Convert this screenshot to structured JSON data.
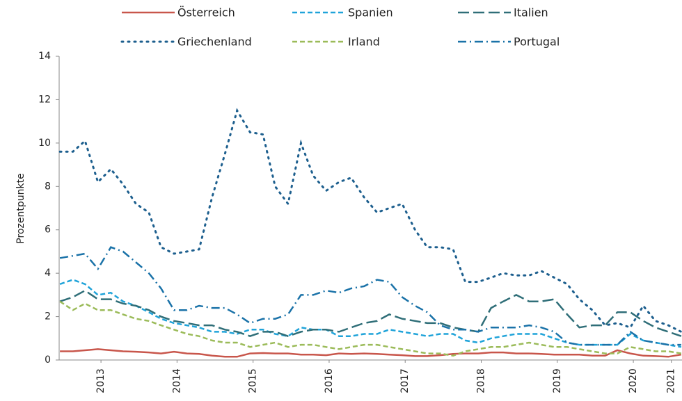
{
  "chart_data": {
    "type": "line",
    "y_label": "Prozentpunkte",
    "x": [
      2012.96,
      2013.13,
      2013.29,
      2013.46,
      2013.63,
      2013.79,
      2013.96,
      2014.13,
      2014.29,
      2014.46,
      2014.63,
      2014.79,
      2014.96,
      2015.13,
      2015.29,
      2015.46,
      2015.63,
      2015.79,
      2015.96,
      2016.13,
      2016.29,
      2016.46,
      2016.63,
      2016.79,
      2016.96,
      2017.13,
      2017.29,
      2017.46,
      2017.63,
      2017.79,
      2017.96,
      2018.13,
      2018.29,
      2018.46,
      2018.63,
      2018.79,
      2018.96,
      2019.13,
      2019.29,
      2019.46,
      2019.63,
      2019.79,
      2019.96,
      2020.13,
      2020.29,
      2020.46,
      2020.63,
      2020.79,
      2020.96,
      2021.13
    ],
    "xlim": [
      2012.95,
      2021.14
    ],
    "xticks": [
      {
        "value": 2013.5,
        "label": "2013"
      },
      {
        "value": 2014.5,
        "label": "2014"
      },
      {
        "value": 2015.5,
        "label": "2015"
      },
      {
        "value": 2016.5,
        "label": "2016"
      },
      {
        "value": 2017.5,
        "label": "2017"
      },
      {
        "value": 2018.5,
        "label": "2018"
      },
      {
        "value": 2019.5,
        "label": "2019"
      },
      {
        "value": 2020.5,
        "label": "2020"
      },
      2021
    ],
    "ylim": [
      0,
      14
    ],
    "yticks": [
      0,
      2,
      4,
      6,
      8,
      10,
      12,
      14
    ],
    "grid": false,
    "legend": "top",
    "series": [
      {
        "name": "Österreich",
        "color": "#c8564b",
        "style": "solid",
        "values": [
          0.4,
          0.4,
          0.45,
          0.5,
          0.45,
          0.4,
          0.38,
          0.35,
          0.3,
          0.38,
          0.3,
          0.28,
          0.2,
          0.15,
          0.15,
          0.3,
          0.32,
          0.3,
          0.3,
          0.25,
          0.25,
          0.22,
          0.3,
          0.28,
          0.3,
          0.28,
          0.25,
          0.22,
          0.18,
          0.18,
          0.22,
          0.28,
          0.3,
          0.3,
          0.35,
          0.35,
          0.3,
          0.3,
          0.28,
          0.25,
          0.25,
          0.25,
          0.2,
          0.2,
          0.45,
          0.3,
          0.2,
          0.18,
          0.15,
          0.25
        ]
      },
      {
        "name": "Spanien",
        "color": "#1fa3d9",
        "style": "dashed",
        "values": [
          3.5,
          3.7,
          3.5,
          3.0,
          3.1,
          2.7,
          2.5,
          2.2,
          1.9,
          1.7,
          1.6,
          1.5,
          1.3,
          1.3,
          1.2,
          1.4,
          1.4,
          1.2,
          1.1,
          1.5,
          1.4,
          1.4,
          1.1,
          1.1,
          1.2,
          1.2,
          1.4,
          1.3,
          1.2,
          1.1,
          1.2,
          1.2,
          0.9,
          0.8,
          1.0,
          1.1,
          1.2,
          1.2,
          1.2,
          1.0,
          0.8,
          0.7,
          0.7,
          0.7,
          0.7,
          1.2,
          0.9,
          0.8,
          0.7,
          0.6
        ]
      },
      {
        "name": "Italien",
        "color": "#2f6e78",
        "style": "longdash",
        "values": [
          2.7,
          2.9,
          3.2,
          2.8,
          2.8,
          2.6,
          2.5,
          2.3,
          2.0,
          1.8,
          1.7,
          1.6,
          1.6,
          1.4,
          1.3,
          1.1,
          1.3,
          1.3,
          1.1,
          1.3,
          1.4,
          1.4,
          1.3,
          1.5,
          1.7,
          1.8,
          2.1,
          1.9,
          1.8,
          1.7,
          1.7,
          1.5,
          1.4,
          1.3,
          2.4,
          2.7,
          3.0,
          2.7,
          2.7,
          2.8,
          2.1,
          1.5,
          1.6,
          1.6,
          2.2,
          2.2,
          1.8,
          1.5,
          1.3,
          1.1
        ]
      },
      {
        "name": "Griechenland",
        "color": "#1d5f8e",
        "style": "dotted",
        "values": [
          9.6,
          9.6,
          10.1,
          8.2,
          8.8,
          8.1,
          7.2,
          6.8,
          5.2,
          4.9,
          5.0,
          5.1,
          7.5,
          9.5,
          11.5,
          10.5,
          10.4,
          8.0,
          7.2,
          10.0,
          8.5,
          7.8,
          8.2,
          8.4,
          7.5,
          6.8,
          7.0,
          7.2,
          6.0,
          5.2,
          5.2,
          5.1,
          3.6,
          3.6,
          3.8,
          4.0,
          3.9,
          3.9,
          4.1,
          3.8,
          3.5,
          2.8,
          2.3,
          1.6,
          1.7,
          1.5,
          2.5,
          1.8,
          1.6,
          1.3
        ]
      },
      {
        "name": "Irland",
        "color": "#9bbb59",
        "style": "dashed",
        "values": [
          2.7,
          2.3,
          2.6,
          2.3,
          2.3,
          2.1,
          1.9,
          1.8,
          1.6,
          1.4,
          1.2,
          1.1,
          0.9,
          0.8,
          0.8,
          0.6,
          0.7,
          0.8,
          0.6,
          0.7,
          0.7,
          0.6,
          0.5,
          0.6,
          0.7,
          0.7,
          0.6,
          0.5,
          0.4,
          0.3,
          0.3,
          0.2,
          0.4,
          0.5,
          0.6,
          0.6,
          0.7,
          0.8,
          0.7,
          0.6,
          0.6,
          0.5,
          0.4,
          0.3,
          0.3,
          0.6,
          0.5,
          0.4,
          0.4,
          0.3
        ]
      },
      {
        "name": "Portugal",
        "color": "#1a72a8",
        "style": "dashdot",
        "values": [
          4.7,
          4.8,
          4.9,
          4.2,
          5.2,
          5.0,
          4.5,
          4.0,
          3.3,
          2.3,
          2.3,
          2.5,
          2.4,
          2.4,
          2.1,
          1.7,
          1.9,
          1.9,
          2.1,
          3.0,
          3.0,
          3.2,
          3.1,
          3.3,
          3.4,
          3.7,
          3.6,
          2.9,
          2.5,
          2.2,
          1.6,
          1.4,
          1.4,
          1.3,
          1.5,
          1.5,
          1.5,
          1.6,
          1.5,
          1.3,
          0.8,
          0.7,
          0.7,
          0.7,
          0.7,
          1.3,
          0.9,
          0.8,
          0.7,
          0.7
        ]
      }
    ]
  }
}
